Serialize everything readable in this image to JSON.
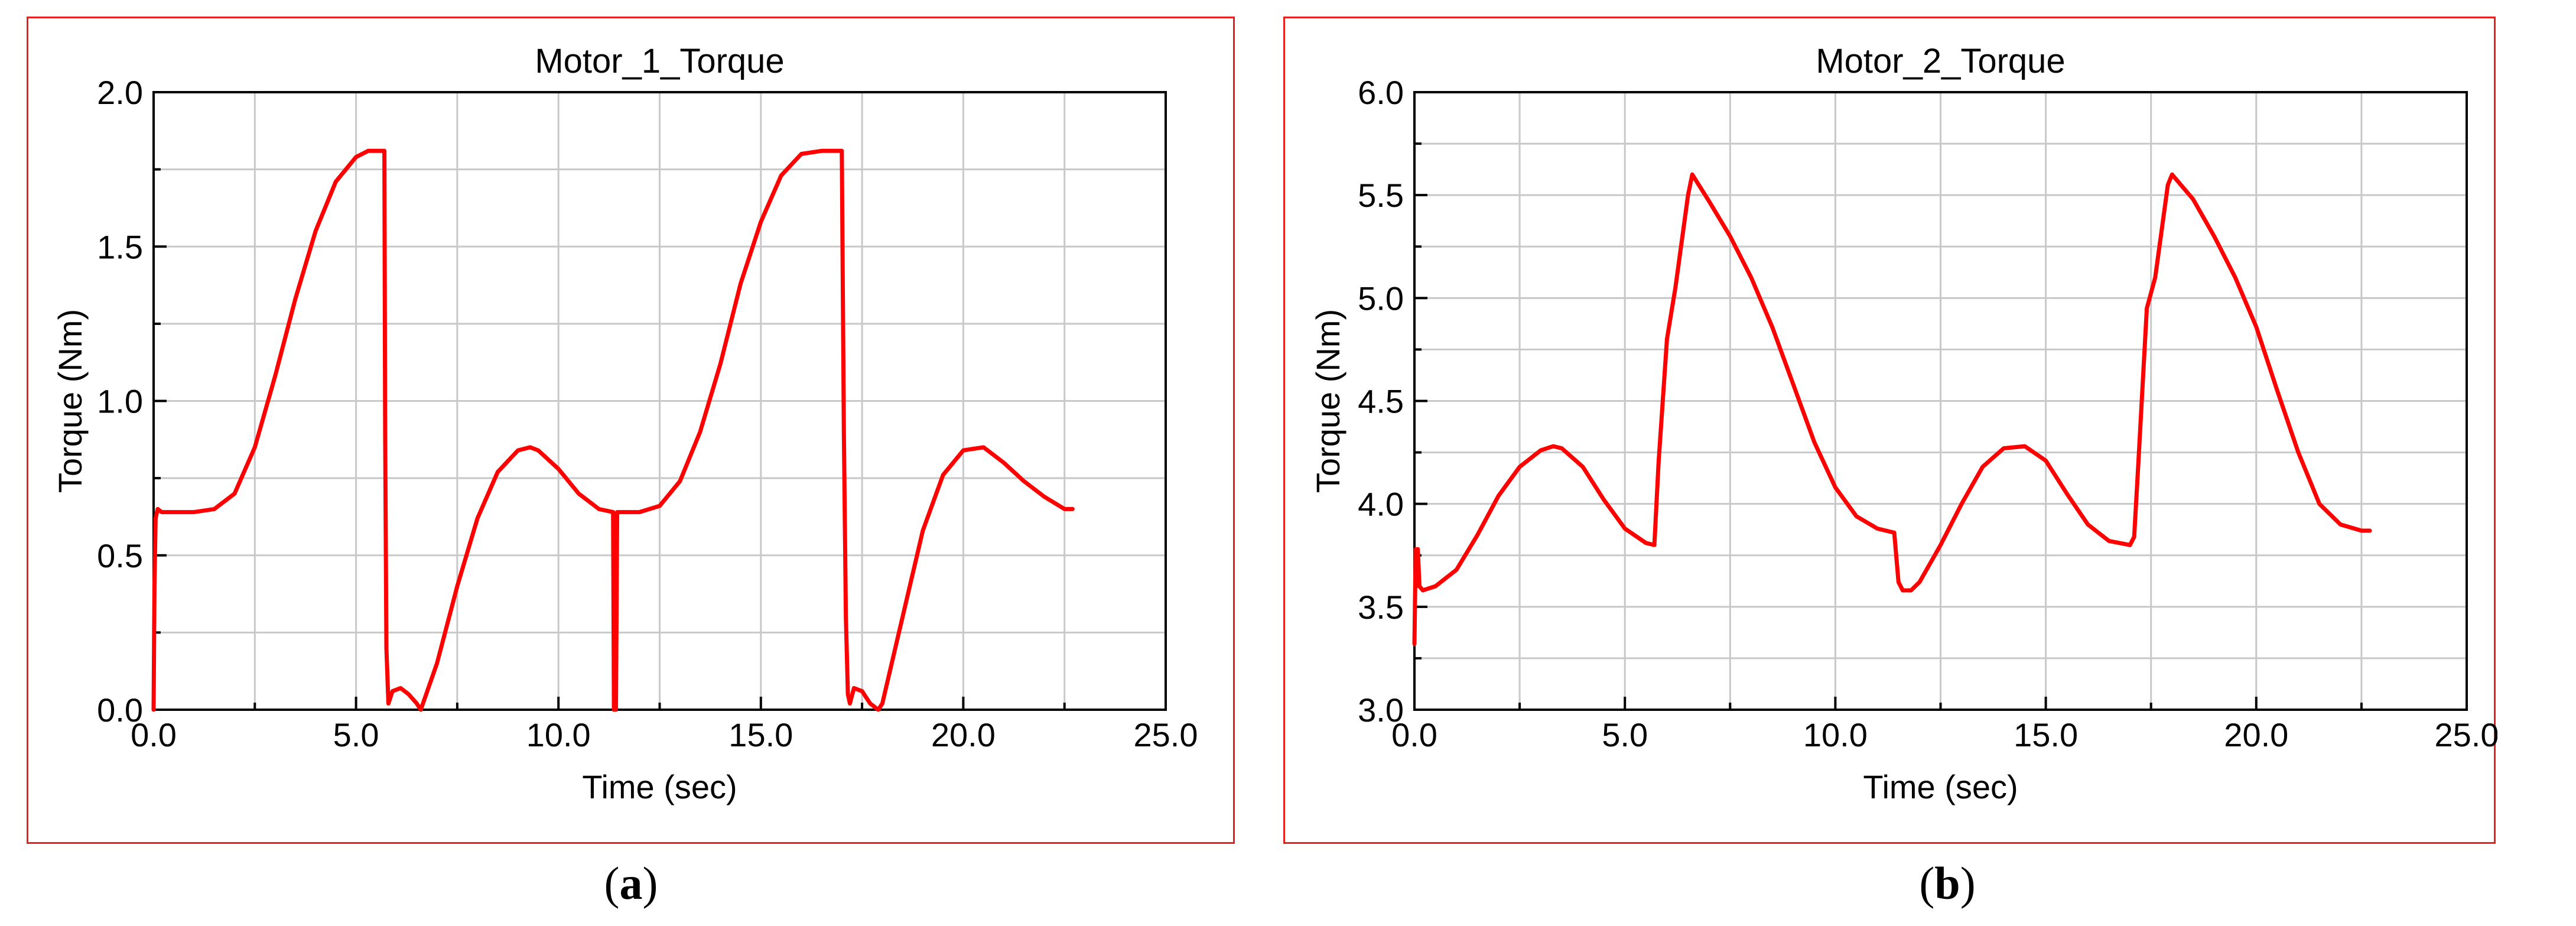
{
  "colors": {
    "frame": "#e8201c",
    "series": "#ff0000",
    "grid": "#c8c8c8",
    "axis": "#000000"
  },
  "captions": {
    "a": {
      "open": "(",
      "letter": "a",
      "close": ")"
    },
    "b": {
      "open": "(",
      "letter": "b",
      "close": ")"
    }
  },
  "chart_data": [
    {
      "type": "line",
      "title": "Motor_1_Torque",
      "xlabel": "Time (sec)",
      "ylabel": "Torque (Nm)",
      "xlim": [
        0.0,
        25.0
      ],
      "ylim": [
        0.0,
        2.0
      ],
      "xticks": [
        "0.0",
        "5.0",
        "10.0",
        "15.0",
        "20.0",
        "25.0"
      ],
      "yticks": [
        "0.0",
        "0.5",
        "1.0",
        "1.5",
        "2.0"
      ],
      "grid": true,
      "series": [
        {
          "x": [
            0.0,
            0.02,
            0.05,
            0.1,
            0.2,
            0.5,
            1.0,
            1.5,
            2.0,
            2.5,
            3.0,
            3.5,
            4.0,
            4.5,
            5.0,
            5.3,
            5.6,
            5.7,
            5.72,
            5.75,
            5.8,
            5.9,
            6.1,
            6.3,
            6.5,
            6.6,
            7.0,
            7.5,
            8.0,
            8.5,
            9.0,
            9.3,
            9.5,
            10.0,
            10.5,
            11.0,
            11.35,
            11.37,
            11.42,
            11.45,
            11.5,
            12.0,
            12.5,
            13.0,
            13.5,
            14.0,
            14.5,
            15.0,
            15.5,
            16.0,
            16.5,
            16.9,
            17.0,
            17.05,
            17.1,
            17.15,
            17.2,
            17.3,
            17.5,
            17.7,
            17.9,
            18.0,
            18.5,
            19.0,
            19.5,
            20.0,
            20.5,
            21.0,
            21.5,
            22.0,
            22.5,
            22.7
          ],
          "y": [
            0.0,
            0.4,
            0.62,
            0.65,
            0.64,
            0.64,
            0.64,
            0.65,
            0.7,
            0.85,
            1.08,
            1.33,
            1.55,
            1.71,
            1.79,
            1.81,
            1.81,
            1.81,
            0.9,
            0.2,
            0.02,
            0.06,
            0.07,
            0.05,
            0.02,
            0.0,
            0.15,
            0.4,
            0.62,
            0.77,
            0.84,
            0.85,
            0.84,
            0.78,
            0.7,
            0.65,
            0.64,
            0.0,
            0.0,
            0.64,
            0.64,
            0.64,
            0.66,
            0.74,
            0.9,
            1.12,
            1.38,
            1.58,
            1.73,
            1.8,
            1.81,
            1.81,
            1.81,
            0.9,
            0.3,
            0.05,
            0.02,
            0.07,
            0.06,
            0.02,
            0.0,
            0.02,
            0.3,
            0.58,
            0.76,
            0.84,
            0.85,
            0.8,
            0.74,
            0.69,
            0.65,
            0.65
          ]
        }
      ]
    },
    {
      "type": "line",
      "title": "Motor_2_Torque",
      "xlabel": "Time (sec)",
      "ylabel": "Torque (Nm)",
      "xlim": [
        0.0,
        25.0
      ],
      "ylim": [
        3.0,
        6.0
      ],
      "xticks": [
        "0.0",
        "5.0",
        "10.0",
        "15.0",
        "20.0",
        "25.0"
      ],
      "yticks": [
        "3.0",
        "3.5",
        "4.0",
        "4.5",
        "5.0",
        "5.5",
        "6.0"
      ],
      "grid": true,
      "series": [
        {
          "x": [
            0.0,
            0.03,
            0.05,
            0.08,
            0.12,
            0.2,
            0.5,
            1.0,
            1.5,
            2.0,
            2.5,
            3.0,
            3.3,
            3.5,
            4.0,
            4.5,
            5.0,
            5.5,
            5.7,
            5.8,
            6.0,
            6.2,
            6.5,
            6.6,
            7.0,
            7.5,
            8.0,
            8.5,
            9.0,
            9.5,
            10.0,
            10.5,
            11.0,
            11.4,
            11.5,
            11.6,
            11.8,
            12.0,
            12.5,
            13.0,
            13.5,
            14.0,
            14.5,
            15.0,
            15.5,
            16.0,
            16.5,
            17.0,
            17.1,
            17.2,
            17.4,
            17.6,
            17.9,
            18.0,
            18.5,
            19.0,
            19.5,
            20.0,
            20.5,
            21.0,
            21.5,
            22.0,
            22.5,
            22.7
          ],
          "y": [
            3.32,
            3.78,
            3.6,
            3.78,
            3.6,
            3.58,
            3.6,
            3.68,
            3.85,
            4.04,
            4.18,
            4.26,
            4.28,
            4.27,
            4.18,
            4.02,
            3.88,
            3.81,
            3.8,
            4.2,
            4.8,
            5.05,
            5.5,
            5.6,
            5.47,
            5.3,
            5.1,
            4.86,
            4.58,
            4.3,
            4.08,
            3.94,
            3.88,
            3.86,
            3.62,
            3.58,
            3.58,
            3.62,
            3.8,
            4.0,
            4.18,
            4.27,
            4.28,
            4.21,
            4.05,
            3.9,
            3.82,
            3.8,
            3.84,
            4.2,
            4.95,
            5.1,
            5.55,
            5.6,
            5.48,
            5.3,
            5.1,
            4.86,
            4.55,
            4.25,
            4.0,
            3.9,
            3.87,
            3.87
          ]
        }
      ]
    }
  ]
}
